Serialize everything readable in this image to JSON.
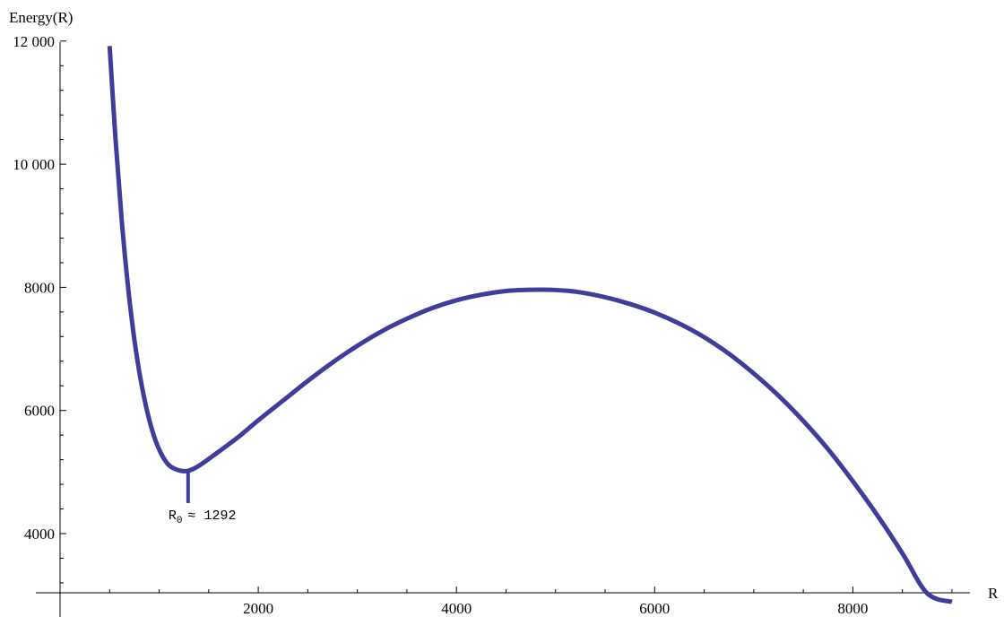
{
  "chart_data": {
    "type": "line",
    "title": "",
    "xlabel": "R",
    "ylabel": "Energy(R)",
    "xlim": [
      0,
      9300
    ],
    "ylim": [
      2900,
      12100
    ],
    "x_ticks_major": [
      2000,
      4000,
      6000,
      8000
    ],
    "x_tick_labels": [
      "2000",
      "4000",
      "6000",
      "8000"
    ],
    "x_ticks_minor_step": 500,
    "y_ticks_major": [
      4000,
      6000,
      8000,
      10000,
      12000
    ],
    "y_tick_labels": [
      "4000",
      "6000",
      "8000",
      "10 000",
      "12 000"
    ],
    "y_ticks_minor_step": 400,
    "grid": false,
    "legend": "none",
    "series_color": "#3f3d99",
    "series": [
      {
        "x": [
          500,
          560,
          620,
          680,
          740,
          800,
          860,
          920,
          980,
          1040,
          1100,
          1160,
          1220,
          1292,
          1400,
          1600,
          1800,
          2000,
          2250,
          2500,
          2750,
          3000,
          3250,
          3500,
          3750,
          4000,
          4250,
          4500,
          4750,
          4950,
          5200,
          5500,
          5750,
          6000,
          6250,
          6500,
          6750,
          7000,
          7250,
          7500,
          7750,
          8000,
          8250,
          8500,
          8750,
          9000
        ],
        "y": [
          11920,
          10400,
          9130,
          8100,
          7270,
          6620,
          6120,
          5730,
          5440,
          5240,
          5110,
          5050,
          5020,
          5020,
          5100,
          5330,
          5570,
          5840,
          6160,
          6480,
          6780,
          7050,
          7290,
          7490,
          7660,
          7790,
          7880,
          7940,
          7960,
          7960,
          7930,
          7840,
          7730,
          7590,
          7410,
          7190,
          6920,
          6600,
          6240,
          5830,
          5370,
          4850,
          4290,
          3680,
          3030,
          2890
        ]
      }
    ],
    "annotations": [
      {
        "label_main": "R",
        "label_sub": "0",
        "label_rest": "≈ 1292",
        "x": 1292,
        "y": 5020
      }
    ]
  }
}
